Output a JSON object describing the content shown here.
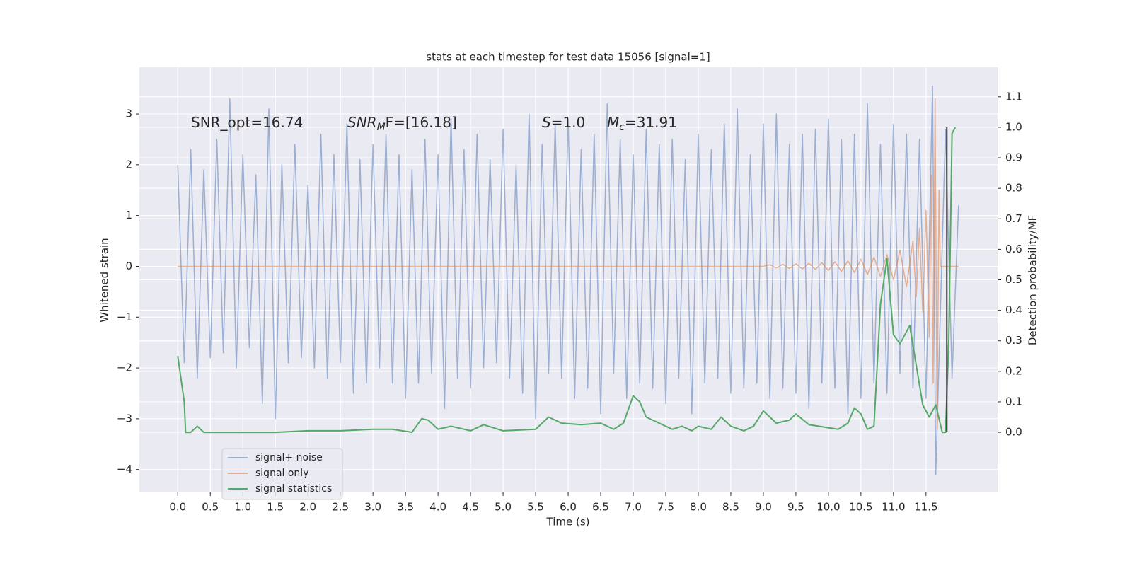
{
  "chart_data": {
    "type": "line",
    "title": "stats at each timestep for test data 15056 [signal=1]",
    "x_label": "Time (s)",
    "y_label": "Whitened strain",
    "y2_label": "Detection probability/MF",
    "annotations": [
      {
        "rest": "SNR_opt=16.74"
      },
      {
        "base": "SNR",
        "sub": "M",
        "rest": "F=[16.18]"
      },
      {
        "base": "S",
        "rest": "=1.0"
      },
      {
        "base": "M",
        "sub": "c",
        "rest": "=31.91"
      }
    ],
    "xlim": [
      -0.59,
      12.6
    ],
    "ylim": [
      -4.45,
      3.92
    ],
    "y2lim": [
      -0.197,
      1.197
    ],
    "xticks": [
      {
        "value": 0,
        "label": "0.0"
      },
      0.5,
      {
        "value": 1,
        "label": "1.0"
      },
      1.5,
      {
        "value": 2,
        "label": "2.0"
      },
      2.5,
      {
        "value": 3,
        "label": "3.0"
      },
      3.5,
      {
        "value": 4,
        "label": "4.0"
      },
      4.5,
      {
        "value": 5,
        "label": "5.0"
      },
      5.5,
      {
        "value": 6,
        "label": "6.0"
      },
      6.5,
      {
        "value": 7,
        "label": "7.0"
      },
      7.5,
      {
        "value": 8,
        "label": "8.0"
      },
      8.5,
      {
        "value": 9,
        "label": "9.0"
      },
      9.5,
      {
        "value": 10,
        "label": "10.0"
      },
      10.5,
      {
        "value": 11,
        "label": "11.0"
      },
      11.5
    ],
    "yticks": [
      {
        "value": -4,
        "label": "−4"
      },
      {
        "value": -3,
        "label": "−3"
      },
      {
        "value": -2,
        "label": "−2"
      },
      {
        "value": -1,
        "label": "−1"
      },
      0,
      1,
      2,
      3
    ],
    "y2ticks": [
      {
        "value": 0,
        "label": "0.0"
      },
      0.1,
      0.2,
      0.3,
      0.4,
      0.5,
      0.6,
      0.7,
      0.8,
      0.9,
      {
        "value": 1,
        "label": "1.0"
      },
      1.1
    ],
    "grid": true,
    "legend": "lower left",
    "series": [
      {
        "name": "signal+ noise",
        "color": "#4c72b0",
        "opacity": 0.5,
        "x": [
          0.0,
          0.1,
          0.2,
          0.3,
          0.4,
          0.5,
          0.6,
          0.7,
          0.8,
          0.9,
          1.0,
          1.1,
          1.2,
          1.3,
          1.4,
          1.5,
          1.6,
          1.7,
          1.8,
          1.9,
          2.0,
          2.1,
          2.2,
          2.3,
          2.4,
          2.5,
          2.6,
          2.7,
          2.8,
          2.9,
          3.0,
          3.1,
          3.2,
          3.3,
          3.4,
          3.5,
          3.6,
          3.7,
          3.8,
          3.9,
          4.0,
          4.1,
          4.2,
          4.3,
          4.4,
          4.5,
          4.6,
          4.7,
          4.8,
          4.9,
          5.0,
          5.1,
          5.2,
          5.3,
          5.4,
          5.5,
          5.6,
          5.7,
          5.8,
          5.9,
          6.0,
          6.1,
          6.2,
          6.3,
          6.4,
          6.5,
          6.6,
          6.7,
          6.8,
          6.9,
          7.0,
          7.1,
          7.2,
          7.3,
          7.4,
          7.5,
          7.6,
          7.7,
          7.8,
          7.9,
          8.0,
          8.1,
          8.2,
          8.3,
          8.4,
          8.5,
          8.6,
          8.7,
          8.8,
          8.9,
          9.0,
          9.1,
          9.2,
          9.3,
          9.4,
          9.5,
          9.6,
          9.7,
          9.8,
          9.9,
          10.0,
          10.1,
          10.2,
          10.3,
          10.4,
          10.5,
          10.6,
          10.7,
          10.8,
          10.9,
          11.0,
          11.1,
          11.2,
          11.3,
          11.4,
          11.5,
          11.6,
          11.65,
          11.8,
          11.9,
          12.0
        ],
        "values": [
          2.0,
          -1.9,
          2.3,
          -2.2,
          1.9,
          -1.8,
          2.5,
          -1.7,
          3.3,
          -2.0,
          2.2,
          -1.6,
          1.8,
          -2.7,
          3.1,
          -3.0,
          2.0,
          -1.9,
          2.4,
          -1.8,
          1.6,
          -2.0,
          2.6,
          -2.2,
          2.2,
          -1.9,
          2.8,
          -2.5,
          2.1,
          -2.3,
          2.4,
          -2.0,
          2.6,
          -2.3,
          2.2,
          -2.6,
          1.9,
          -2.3,
          2.5,
          -2.1,
          2.2,
          -2.8,
          2.9,
          -2.2,
          2.3,
          -2.4,
          2.6,
          -2.0,
          2.1,
          -1.9,
          2.7,
          -2.2,
          2.0,
          -2.5,
          3.0,
          -3.0,
          2.4,
          -2.1,
          2.8,
          -2.2,
          2.9,
          -2.6,
          2.3,
          -2.4,
          2.6,
          -2.9,
          3.2,
          -2.1,
          2.5,
          -2.6,
          2.2,
          -2.3,
          2.7,
          -2.4,
          2.4,
          -2.7,
          2.5,
          -2.2,
          2.1,
          -2.9,
          2.6,
          -2.3,
          2.3,
          -2.2,
          2.8,
          -2.5,
          3.1,
          -2.4,
          2.2,
          -2.3,
          2.8,
          -2.6,
          3.0,
          -2.4,
          2.4,
          -2.5,
          2.6,
          -2.8,
          2.7,
          -2.3,
          2.9,
          -2.4,
          2.5,
          -2.9,
          2.6,
          -2.6,
          3.2,
          -2.3,
          2.4,
          -2.5,
          2.8,
          -2.1,
          2.6,
          -2.4,
          2.5,
          -2.6,
          3.55,
          -4.1,
          2.7,
          -2.2,
          1.2
        ]
      },
      {
        "name": "signal only",
        "color": "#dd8452",
        "opacity": 0.6,
        "x": [
          0,
          1,
          2,
          3,
          4,
          5,
          6,
          7,
          8,
          9,
          9.1,
          9.2,
          9.3,
          9.4,
          9.5,
          9.6,
          9.7,
          9.8,
          9.9,
          10.0,
          10.1,
          10.2,
          10.3,
          10.4,
          10.5,
          10.6,
          10.7,
          10.8,
          10.9,
          11.0,
          11.1,
          11.2,
          11.3,
          11.35,
          11.4,
          11.45,
          11.5,
          11.55,
          11.58,
          11.61,
          11.64,
          11.67,
          11.7,
          11.72,
          12.0
        ],
        "values": [
          0,
          0,
          0,
          0,
          0,
          0,
          0,
          0,
          0,
          0,
          0.03,
          -0.03,
          0.04,
          -0.04,
          0.05,
          -0.05,
          0.06,
          -0.06,
          0.07,
          -0.08,
          0.09,
          -0.1,
          0.11,
          -0.12,
          0.14,
          -0.16,
          0.18,
          -0.2,
          0.23,
          -0.27,
          0.32,
          -0.4,
          0.5,
          -0.6,
          0.75,
          -0.9,
          1.1,
          -1.4,
          1.8,
          -2.3,
          3.3,
          -3.2,
          1.5,
          0,
          0
        ]
      },
      {
        "name": "signal statistics",
        "color": "#55a868",
        "opacity": 1,
        "axis": "y2",
        "x": [
          0,
          0.1,
          0.12,
          0.2,
          0.3,
          0.4,
          0.6,
          1.0,
          1.5,
          2.0,
          2.5,
          3.0,
          3.3,
          3.6,
          3.75,
          3.85,
          4.0,
          4.2,
          4.5,
          4.7,
          5.0,
          5.5,
          5.7,
          5.9,
          6.2,
          6.5,
          6.7,
          6.85,
          7.0,
          7.1,
          7.2,
          7.4,
          7.6,
          7.75,
          7.9,
          8.0,
          8.2,
          8.35,
          8.5,
          8.7,
          8.85,
          9.0,
          9.2,
          9.4,
          9.5,
          9.7,
          10.0,
          10.15,
          10.3,
          10.4,
          10.5,
          10.6,
          10.7,
          10.8,
          10.9,
          11.0,
          11.1,
          11.2,
          11.25,
          11.35,
          11.45,
          11.55,
          11.65,
          11.75,
          11.8,
          11.85,
          11.9,
          11.95
        ],
        "values": [
          0.25,
          0.1,
          0.0,
          0.0,
          0.02,
          0.0,
          0.0,
          0.0,
          0.0,
          0.005,
          0.005,
          0.01,
          0.01,
          0.0,
          0.045,
          0.04,
          0.01,
          0.02,
          0.005,
          0.025,
          0.005,
          0.01,
          0.05,
          0.03,
          0.025,
          0.03,
          0.01,
          0.03,
          0.12,
          0.1,
          0.05,
          0.03,
          0.01,
          0.02,
          0.005,
          0.02,
          0.01,
          0.05,
          0.02,
          0.005,
          0.02,
          0.07,
          0.03,
          0.04,
          0.06,
          0.025,
          0.015,
          0.01,
          0.03,
          0.08,
          0.06,
          0.01,
          0.02,
          0.42,
          0.57,
          0.32,
          0.29,
          0.33,
          0.35,
          0.22,
          0.09,
          0.05,
          0.09,
          0.0,
          0.0,
          0.3,
          0.98,
          1.0
        ]
      }
    ],
    "vertical_line": {
      "x": 11.82,
      "y2": [
        0,
        1
      ],
      "color": "#333333"
    }
  }
}
